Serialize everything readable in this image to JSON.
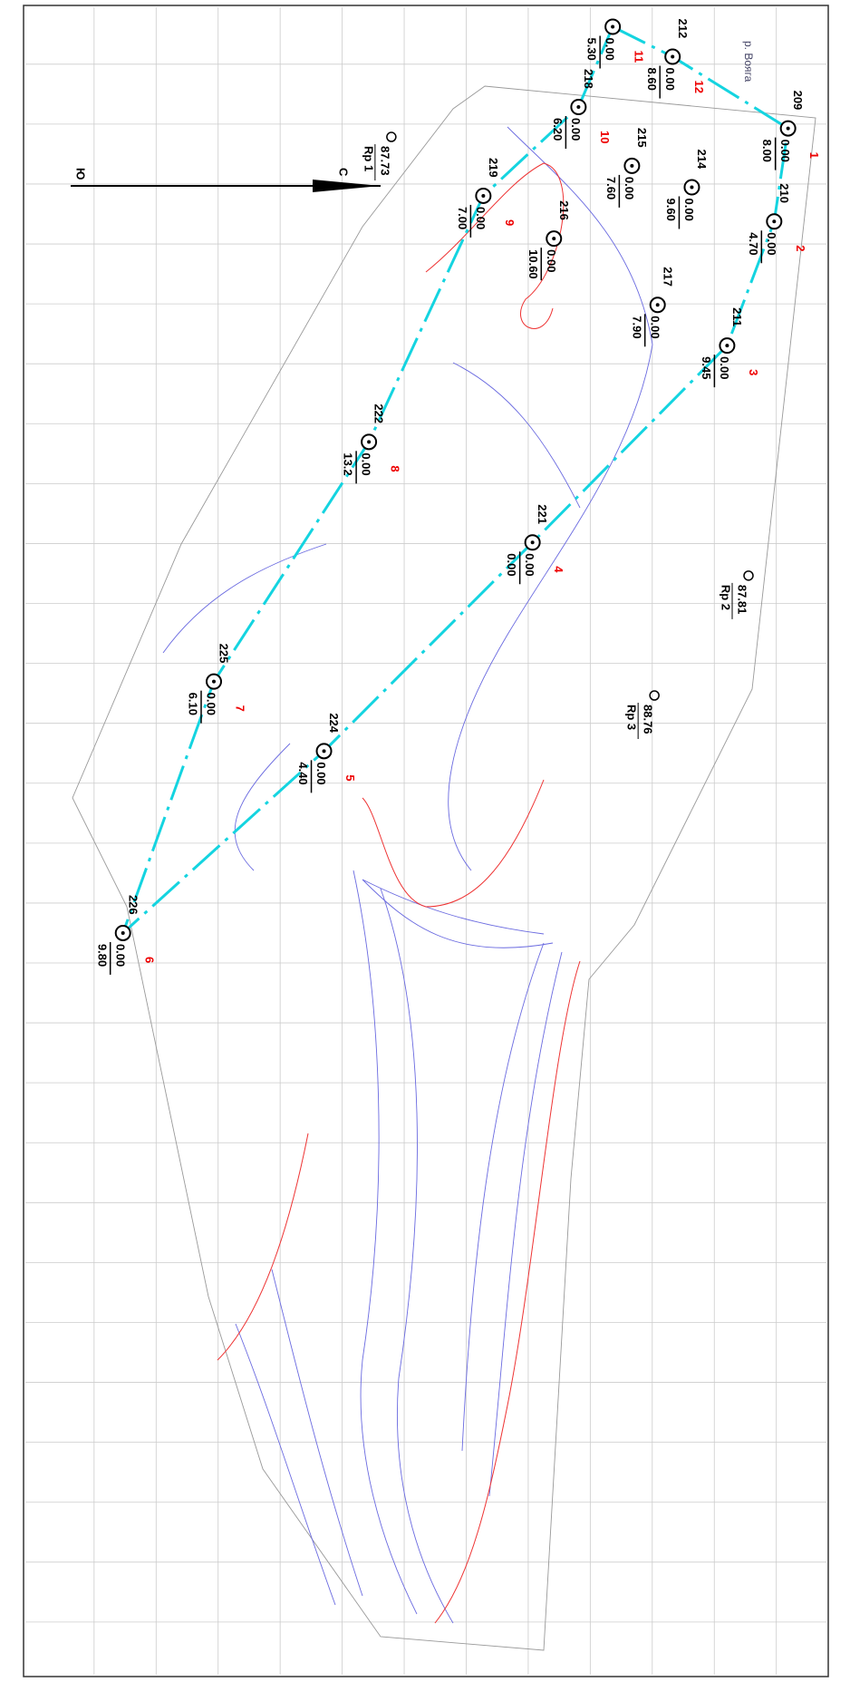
{
  "river": "р. Вояга",
  "north": "С",
  "south": "Ю",
  "benchmarks": [
    {
      "name": "Rp 1",
      "elevation": "87.73"
    },
    {
      "name": "Rp 2",
      "elevation": "87.81"
    },
    {
      "name": "Rp 3",
      "elevation": "88.76"
    }
  ],
  "points": [
    {
      "id": "209",
      "top": "0.00",
      "bottom": "8.00",
      "vertex": "1"
    },
    {
      "id": "210",
      "top": "0.00",
      "bottom": "4.70",
      "vertex": "2"
    },
    {
      "id": "211",
      "top": "0.00",
      "bottom": "9.45",
      "vertex": "3"
    },
    {
      "id": "221",
      "top": "0.00",
      "bottom": "0.00",
      "vertex": "4"
    },
    {
      "id": "224",
      "top": "0.00",
      "bottom": "4.40",
      "vertex": "5"
    },
    {
      "id": "226",
      "top": "0.00",
      "bottom": "9.80",
      "vertex": "6"
    },
    {
      "id": "225",
      "top": "0.00",
      "bottom": "6.10",
      "vertex": "7"
    },
    {
      "id": "222",
      "top": "0.00",
      "bottom": "13.2",
      "vertex": "8"
    },
    {
      "id": "219",
      "top": "0.00",
      "bottom": "7.00",
      "vertex": "9"
    },
    {
      "id": "218",
      "top": "0.00",
      "bottom": "6.20",
      "vertex": "10"
    },
    {
      "id": null,
      "top": "0.00",
      "bottom": "5.30",
      "vertex": "11"
    },
    {
      "id": "212",
      "top": "0.00",
      "bottom": "8.60",
      "vertex": "12"
    },
    {
      "id": "215",
      "top": "0.00",
      "bottom": "7.60",
      "vertex": null
    },
    {
      "id": "214",
      "top": "0.00",
      "bottom": "9.60",
      "vertex": null
    },
    {
      "id": "216",
      "top": "0.00",
      "bottom": "10.60",
      "vertex": null
    },
    {
      "id": "217",
      "top": "0.00",
      "bottom": "7.90",
      "vertex": null
    }
  ]
}
